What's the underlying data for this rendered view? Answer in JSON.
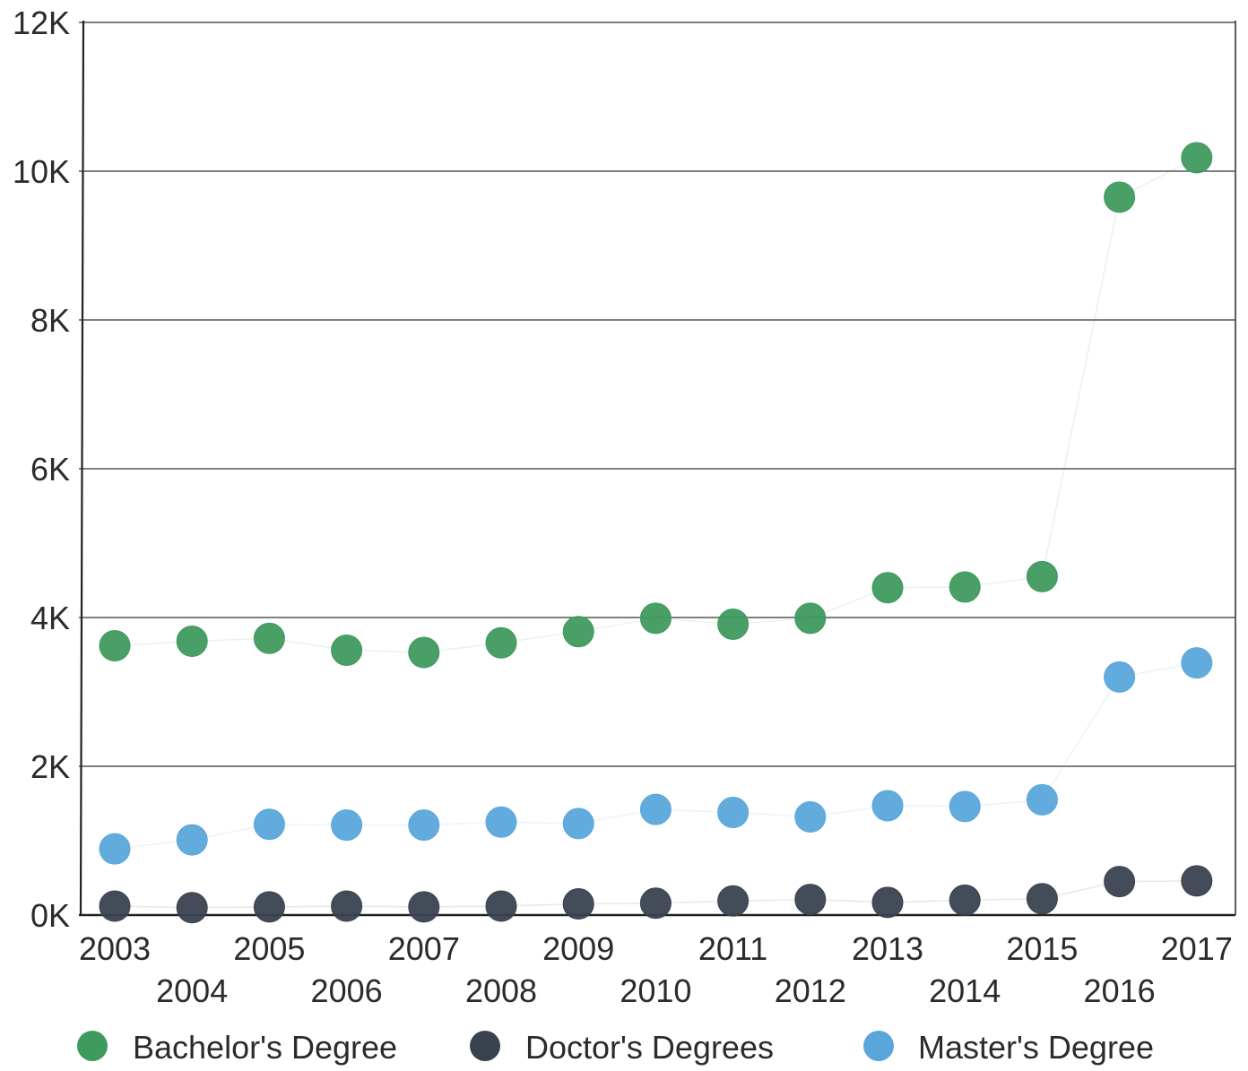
{
  "chart_data": {
    "type": "scatter",
    "categories": [
      "2003",
      "2004",
      "2005",
      "2006",
      "2007",
      "2008",
      "2009",
      "2010",
      "2011",
      "2012",
      "2013",
      "2014",
      "2015",
      "2016",
      "2017"
    ],
    "ylim": [
      0,
      12000
    ],
    "yticks": [
      0,
      2000,
      4000,
      6000,
      8000,
      10000,
      12000
    ],
    "ytick_labels": [
      "0K",
      "2K",
      "4K",
      "6K",
      "8K",
      "10K",
      "12K"
    ],
    "grid": true,
    "legend_position": "bottom",
    "series": [
      {
        "name": "Bachelor's Degree",
        "color": "#3f9a5e",
        "values": [
          3620,
          3680,
          3720,
          3560,
          3530,
          3660,
          3810,
          3990,
          3910,
          3990,
          4400,
          4410,
          4550,
          9650,
          10180
        ]
      },
      {
        "name": "Doctor's Degrees",
        "color": "#3a4250",
        "values": [
          120,
          100,
          110,
          120,
          110,
          120,
          150,
          160,
          190,
          210,
          170,
          200,
          220,
          450,
          460
        ]
      },
      {
        "name": "Master's Degree",
        "color": "#5aa6db",
        "values": [
          890,
          1010,
          1220,
          1210,
          1210,
          1250,
          1230,
          1420,
          1380,
          1320,
          1470,
          1460,
          1550,
          3200,
          3390
        ]
      }
    ]
  }
}
